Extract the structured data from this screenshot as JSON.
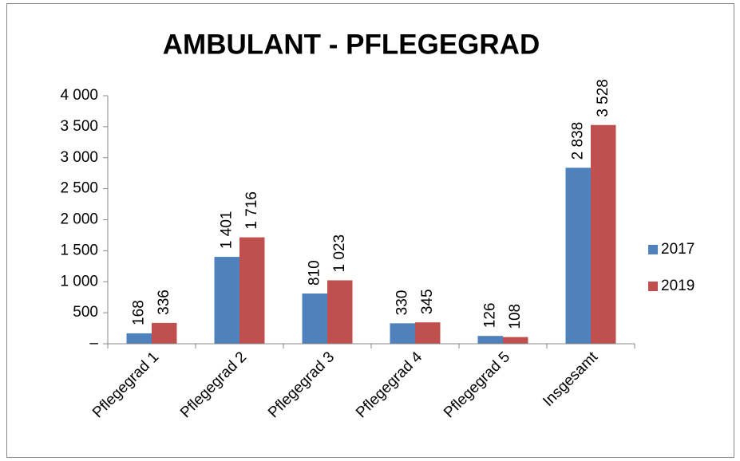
{
  "chart_data": {
    "type": "bar",
    "title": "AMBULANT - PFLEGEGRAD",
    "categories": [
      "Pflegegrad 1",
      "Pflegegrad 2",
      "Pflegegrad 3",
      "Pflegegrad 4",
      "Pflegegrad 5",
      "Insgesamt"
    ],
    "series": [
      {
        "name": "2017",
        "color": "#4f81bd",
        "values": [
          168,
          1401,
          810,
          330,
          126,
          2838
        ],
        "value_labels": [
          "168",
          "1 401",
          "810",
          "330",
          "126",
          "2 838"
        ]
      },
      {
        "name": "2019",
        "color": "#c0504d",
        "values": [
          336,
          1716,
          1023,
          345,
          108,
          3528
        ],
        "value_labels": [
          "336",
          "1 716",
          "1 023",
          "345",
          "108",
          "3 528"
        ]
      }
    ],
    "ylim": [
      0,
      4000
    ],
    "yticks": [
      {
        "value": 0,
        "label": "–"
      },
      500,
      {
        "value": 1000,
        "label": "1 000"
      },
      {
        "value": 1500,
        "label": "1 500"
      },
      {
        "value": 2000,
        "label": "2 000"
      },
      {
        "value": 2500,
        "label": "2 500"
      },
      {
        "value": 3000,
        "label": "3 000"
      },
      {
        "value": 3500,
        "label": "3 500"
      },
      {
        "value": 4000,
        "label": "4 000"
      }
    ],
    "legend": "right"
  }
}
